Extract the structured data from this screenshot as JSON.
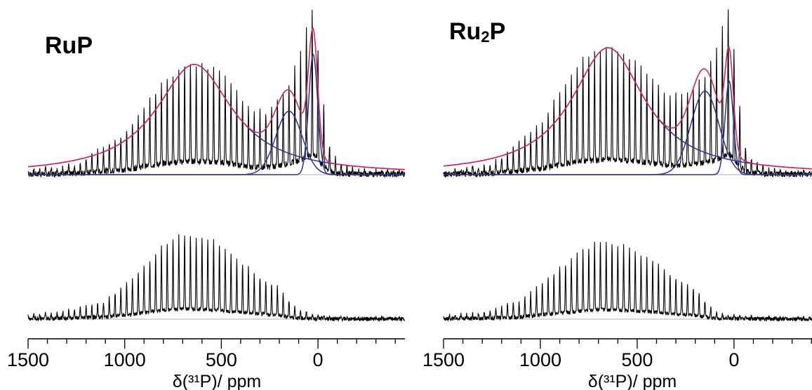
{
  "colors": {
    "spectrum": "#000000",
    "fit_total": "#d6294f",
    "fit_component": "#2e3192",
    "baseline": "#b0b0b0"
  },
  "chart_data": [
    {
      "type": "line",
      "title": "RuP",
      "title_sub": "",
      "title_tail": "",
      "xlabel": "δ(³¹P)/ ppm",
      "x_direction": "reversed",
      "xlim": [
        1500,
        -450
      ],
      "x_tick_labels": [
        "1500",
        "1000",
        "500",
        "0"
      ],
      "x_tick_values": [
        1500,
        1000,
        500,
        0
      ],
      "minor_tick_step": 100,
      "grid": false,
      "spinning_sideband_spacing_ppm": 30,
      "experimental": {
        "comment_free": true,
        "top_envelope": {
          "x": [
            1500,
            1250,
            1000,
            800,
            650,
            500,
            350,
            250,
            150,
            80,
            40,
            20,
            -20,
            -60,
            -100,
            -200,
            -300,
            -450
          ],
          "y": [
            0.02,
            0.06,
            0.25,
            0.56,
            0.67,
            0.62,
            0.38,
            0.38,
            0.55,
            0.78,
            0.96,
            1.0,
            0.5,
            0.18,
            0.07,
            0.03,
            0.02,
            0.02
          ]
        },
        "bottom_envelope": {
          "x": [
            1500,
            1300,
            1100,
            950,
            800,
            700,
            550,
            400,
            300,
            200,
            150,
            100,
            0,
            -100,
            -200,
            -450
          ],
          "y": [
            0.04,
            0.07,
            0.16,
            0.37,
            0.65,
            0.75,
            0.7,
            0.5,
            0.37,
            0.28,
            0.16,
            0.08,
            0.03,
            0.02,
            0.01,
            0.01
          ]
        }
      },
      "fit_components": [
        {
          "type": "lorentzian",
          "center": 640,
          "height": 0.66,
          "width": 480
        },
        {
          "type": "gaussian",
          "center": 150,
          "height": 0.38,
          "width": 160
        },
        {
          "type": "gaussian",
          "center": 25,
          "height": 0.72,
          "width": 55
        }
      ]
    },
    {
      "type": "line",
      "title": "Ru",
      "title_sub": "2",
      "title_tail": "P",
      "xlabel": "δ(³¹P)/ ppm",
      "x_direction": "reversed",
      "xlim": [
        1500,
        -450
      ],
      "x_tick_labels": [
        "1500",
        "1000",
        "500",
        "0"
      ],
      "x_tick_values": [
        1500,
        1000,
        500,
        0
      ],
      "minor_tick_step": 100,
      "grid": false,
      "spinning_sideband_spacing_ppm": 30,
      "experimental": {
        "top_envelope": {
          "x": [
            1500,
            1250,
            1000,
            800,
            650,
            500,
            350,
            250,
            150,
            80,
            40,
            20,
            -20,
            -60,
            -100,
            -200,
            -300,
            -450
          ],
          "y": [
            0.02,
            0.06,
            0.3,
            0.68,
            0.76,
            0.68,
            0.47,
            0.48,
            0.6,
            0.8,
            0.98,
            1.0,
            0.5,
            0.17,
            0.07,
            0.03,
            0.02,
            0.02
          ]
        },
        "bottom_envelope": {
          "x": [
            1500,
            1300,
            1100,
            950,
            800,
            700,
            550,
            400,
            300,
            200,
            150,
            100,
            0,
            -100,
            -200,
            -450
          ],
          "y": [
            0.03,
            0.06,
            0.16,
            0.38,
            0.58,
            0.68,
            0.64,
            0.49,
            0.36,
            0.27,
            0.16,
            0.07,
            0.03,
            0.02,
            0.01,
            0.01
          ]
        }
      },
      "fit_components": [
        {
          "type": "lorentzian",
          "center": 650,
          "height": 0.76,
          "width": 460
        },
        {
          "type": "gaussian",
          "center": 150,
          "height": 0.5,
          "width": 170
        },
        {
          "type": "gaussian",
          "center": 25,
          "height": 0.56,
          "width": 50
        }
      ]
    }
  ]
}
